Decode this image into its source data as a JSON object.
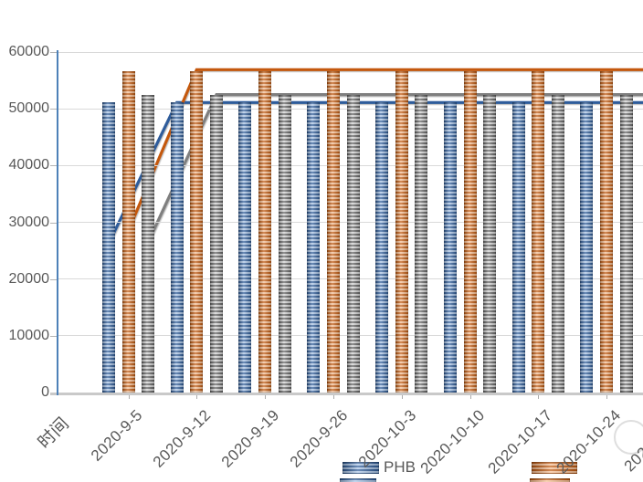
{
  "chart_data": {
    "type": "bar",
    "subtype": "combo-bar-line",
    "title": "",
    "xlabel": "时间",
    "ylabel": "",
    "ylim": [
      0,
      60000
    ],
    "grid": true,
    "y_tick_labels": [
      "0",
      "10000",
      "20000",
      "30000",
      "40000",
      "50000",
      "60000"
    ],
    "y_ticks": [
      0,
      10000,
      20000,
      30000,
      40000,
      50000,
      60000
    ],
    "categories": [
      "2020-9-5",
      "2020-9-12",
      "2020-9-19",
      "2020-9-26",
      "2020-10-3",
      "2020-10-10",
      "2020-10-17",
      "2020-10-24"
    ],
    "x_axis_leading_label": "时间",
    "x_axis_trailing_partial_label": "202",
    "bar_series": [
      {
        "name": "blue-striped-bars",
        "color_dark": "#2e5c99",
        "color_light": "#a9c4e6",
        "values": [
          51200,
          51200,
          51200,
          51200,
          51200,
          51200,
          51200,
          51200
        ]
      },
      {
        "name": "orange-striped-bars",
        "color_dark": "#c0590f",
        "color_light": "#f5be93",
        "values": [
          56700,
          56700,
          56700,
          56700,
          56700,
          56700,
          56700,
          56700
        ]
      },
      {
        "name": "gray-striped-bars",
        "color_dark": "#636363",
        "color_light": "#d2d2d2",
        "values": [
          52400,
          52400,
          52400,
          52400,
          52400,
          52400,
          52400,
          52400
        ]
      }
    ],
    "line_series": [
      {
        "name": "blue-line",
        "color": "#2e5b9b",
        "values": [
          26200,
          51100,
          51100,
          51100,
          51100,
          51100,
          51100,
          51100,
          51100
        ]
      },
      {
        "name": "orange-line",
        "color": "#c45911",
        "values": [
          28500,
          56900,
          56900,
          56900,
          56900,
          56900,
          56900,
          56900,
          56900
        ]
      },
      {
        "name": "gray-line",
        "color": "#7f7f7f",
        "values": [
          26500,
          52500,
          52500,
          52500,
          52500,
          52500,
          52500,
          52500,
          52500
        ]
      }
    ],
    "legend_position": "bottom",
    "legend": [
      {
        "label": "PHB",
        "swatch": "blue-striped"
      },
      {
        "label": "",
        "swatch": "orange-striped"
      }
    ],
    "legend_second_row_partially_visible": true
  },
  "legend": {
    "item1_label": "PHB"
  },
  "colors": {
    "axis_line": "#4e81b8",
    "gridline": "#d9d9d9",
    "baseline": "#c9c9c9",
    "tick_label": "#595959"
  }
}
